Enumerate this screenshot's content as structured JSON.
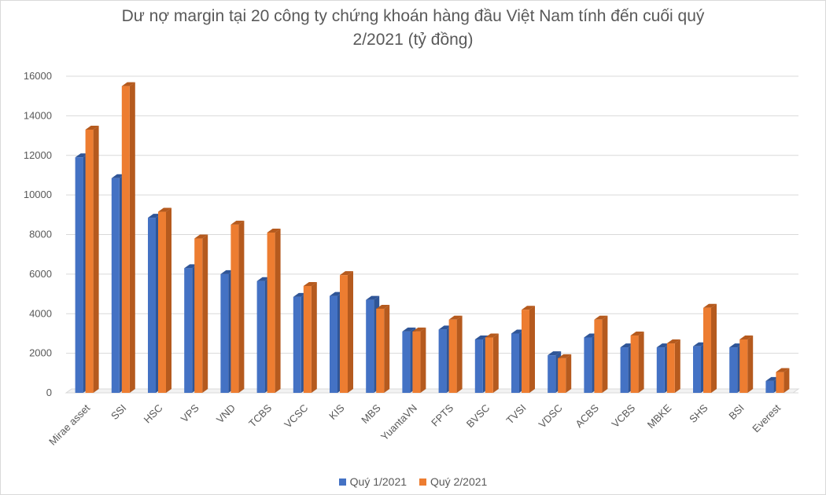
{
  "chart_data": {
    "type": "bar",
    "title_lines": [
      "Dư nợ margin tại 20 công ty chứng khoán hàng đầu Việt Nam tính đến cuối quý",
      "2/2021 (tỷ đồng)"
    ],
    "categories": [
      "Mirae asset",
      "SSI",
      "HSC",
      "VPS",
      "VND",
      "TCBS",
      "VCSC",
      "KIS",
      "MBS",
      "YuantaVN",
      "FPTS",
      "BVSC",
      "TVSI",
      "VDSC",
      "ACBS",
      "VCBS",
      "MBKE",
      "SHS",
      "BSI",
      "Everest"
    ],
    "series": [
      {
        "name": "Quý 1/2021",
        "color": "#4472c4",
        "side_color": "#2f5597",
        "values": [
          11900,
          10850,
          8850,
          6300,
          6000,
          5650,
          4850,
          4900,
          4700,
          3100,
          3200,
          2700,
          3000,
          1900,
          2800,
          2300,
          2300,
          2350,
          2300,
          600
        ]
      },
      {
        "name": "Quý 2/2021",
        "color": "#ed7d31",
        "side_color": "#b55a1e",
        "values": [
          13300,
          15500,
          9150,
          7800,
          8500,
          8100,
          5400,
          5950,
          4250,
          3100,
          3700,
          2800,
          4200,
          1750,
          3700,
          2900,
          2500,
          4300,
          2700,
          1050
        ]
      }
    ],
    "yticks": [
      "0",
      "2000",
      "4000",
      "6000",
      "8000",
      "10000",
      "12000",
      "14000",
      "16000"
    ],
    "ylim": [
      0,
      16000
    ],
    "gridlines": true,
    "legend_position": "bottom",
    "style": "3d-clustered-column"
  }
}
